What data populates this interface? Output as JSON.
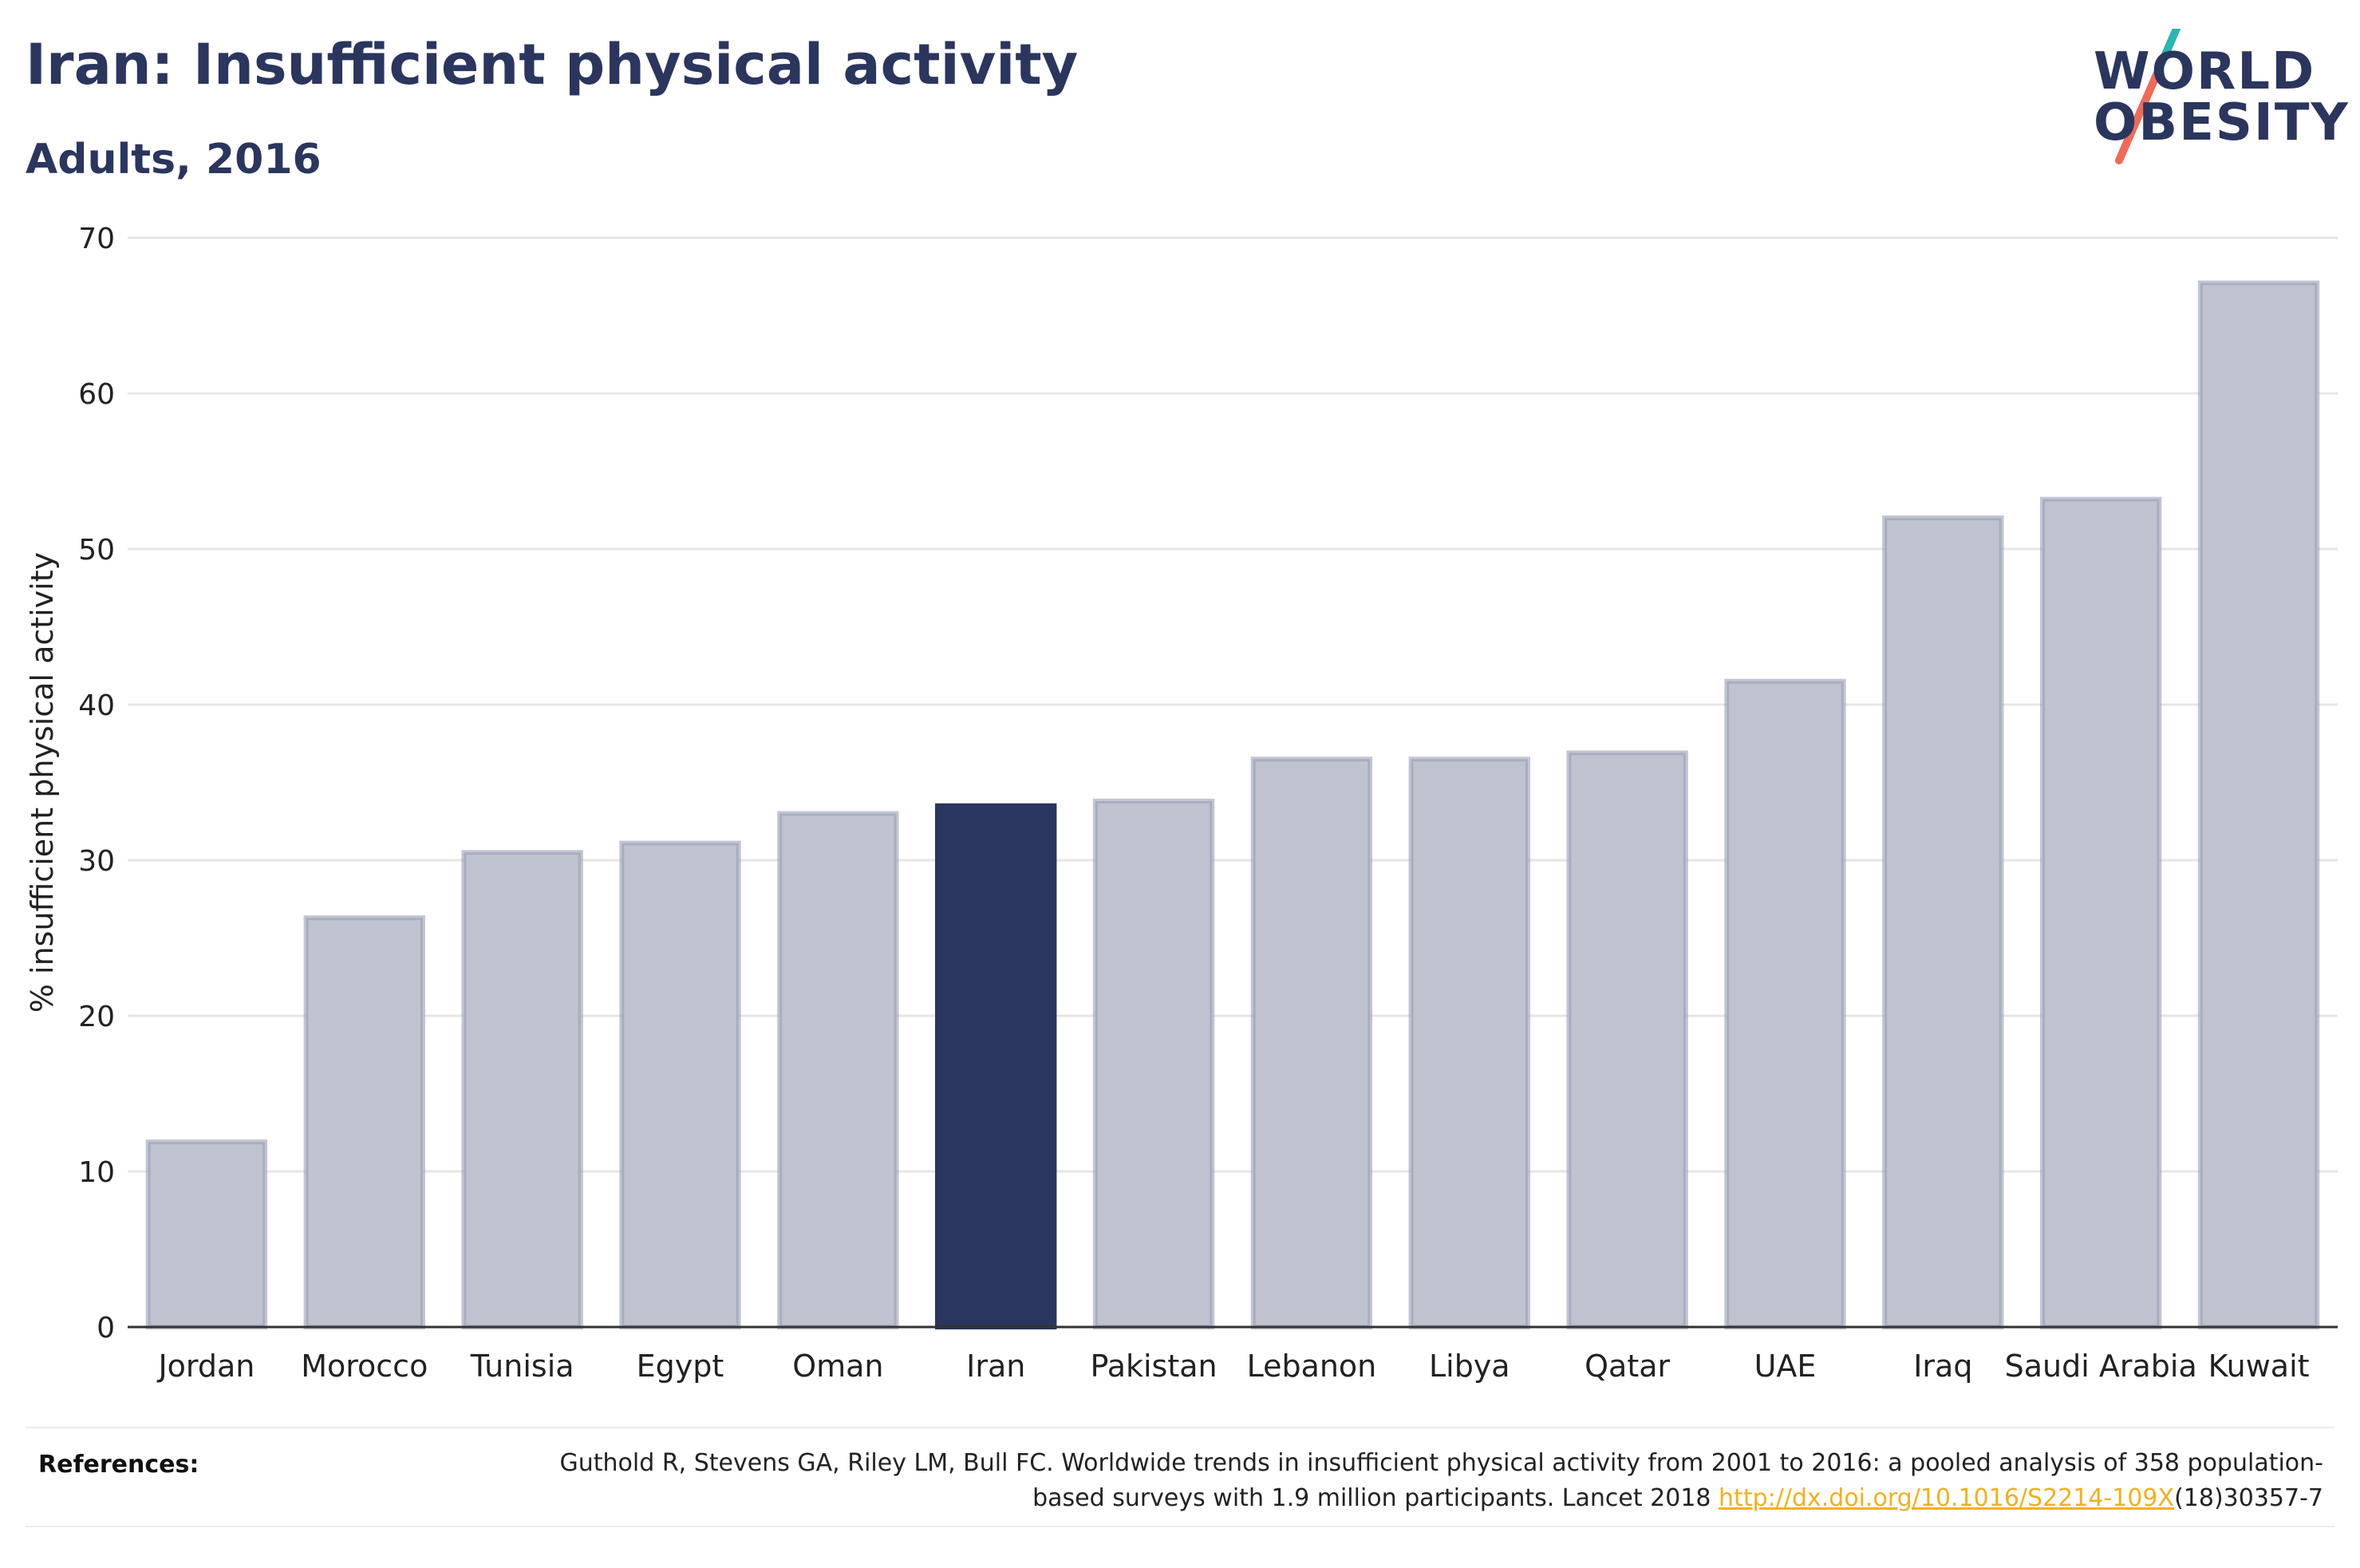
{
  "header": {
    "title": "Iran: Insufficient physical activity",
    "subtitle": "Adults, 2016"
  },
  "logo": {
    "line1": "WORLD",
    "line2": "OBESITY",
    "colors": {
      "text": "#2a365e",
      "slash_top": "#2bb6b0",
      "slash_bottom": "#ef6b57"
    }
  },
  "chart_data": {
    "type": "bar",
    "title": "Iran: Insufficient physical activity",
    "subtitle": "Adults, 2016",
    "xlabel": "",
    "ylabel": "% insufficient physical activity",
    "ylim": [
      0,
      70
    ],
    "yticks": [
      0,
      10,
      20,
      30,
      40,
      50,
      60,
      70
    ],
    "grid": true,
    "legend": "none",
    "highlight": "Iran",
    "categories": [
      "Jordan",
      "Morocco",
      "Tunisia",
      "Egypt",
      "Oman",
      "Iran",
      "Pakistan",
      "Lebanon",
      "Libya",
      "Qatar",
      "UAE",
      "Iraq",
      "Saudi Arabia",
      "Kuwait"
    ],
    "values": [
      11.9,
      26.3,
      30.5,
      31.1,
      33.0,
      33.5,
      33.8,
      36.5,
      36.5,
      36.9,
      41.5,
      52.0,
      53.2,
      67.1
    ],
    "colors": {
      "bar": "#bfc3d0",
      "bar_edge": "#9aa0b5",
      "highlight": "#2a365e",
      "grid": "#e6e6e6",
      "axis": "#333333"
    }
  },
  "references": {
    "label": "References:",
    "text_before": "Guthold R, Stevens GA, Riley LM, Bull FC. Worldwide trends in insufficient physical activity from 2001 to 2016: a pooled analysis of 358 population-based surveys with 1.9 million participants. Lancet 2018 ",
    "link": "http://dx.doi.org/10.1016/S2214-109X",
    "text_after": "(18)30357-7"
  }
}
